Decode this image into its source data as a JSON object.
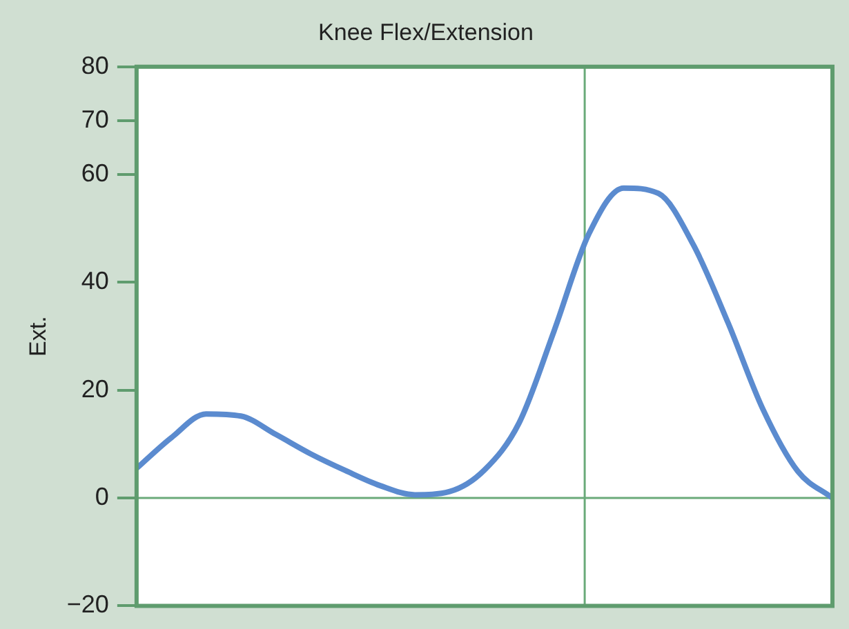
{
  "chart_data": {
    "type": "line",
    "title": "Knee Flex/Extension",
    "ylabel": "Ext.",
    "categories": [
      null,
      null,
      null,
      null,
      null,
      null,
      null,
      null,
      null,
      null,
      null,
      null,
      null,
      null,
      null,
      null,
      null,
      null,
      null,
      null,
      null
    ],
    "series": [
      {
        "color": "#5b8bcf",
        "values": [
          5.5,
          11.2,
          15.6,
          15.2,
          11.8,
          8.2,
          5.1,
          2.3,
          0.6,
          1.2,
          5.2,
          14,
          31,
          49,
          57.5,
          56.5,
          47,
          32.5,
          16.5,
          5,
          0
        ]
      }
    ],
    "ylim": [
      -20,
      80
    ],
    "yticks": [
      {
        "value": -20,
        "label": "−20"
      },
      0,
      20,
      40,
      60,
      70,
      80
    ],
    "tick_labels": "y",
    "grid": false,
    "legend": false,
    "marker": "none",
    "line_style": "solid",
    "ref_lines": [
      {
        "axis": "y",
        "value": 0,
        "color": "#6aaa7a"
      }
    ]
  }
}
